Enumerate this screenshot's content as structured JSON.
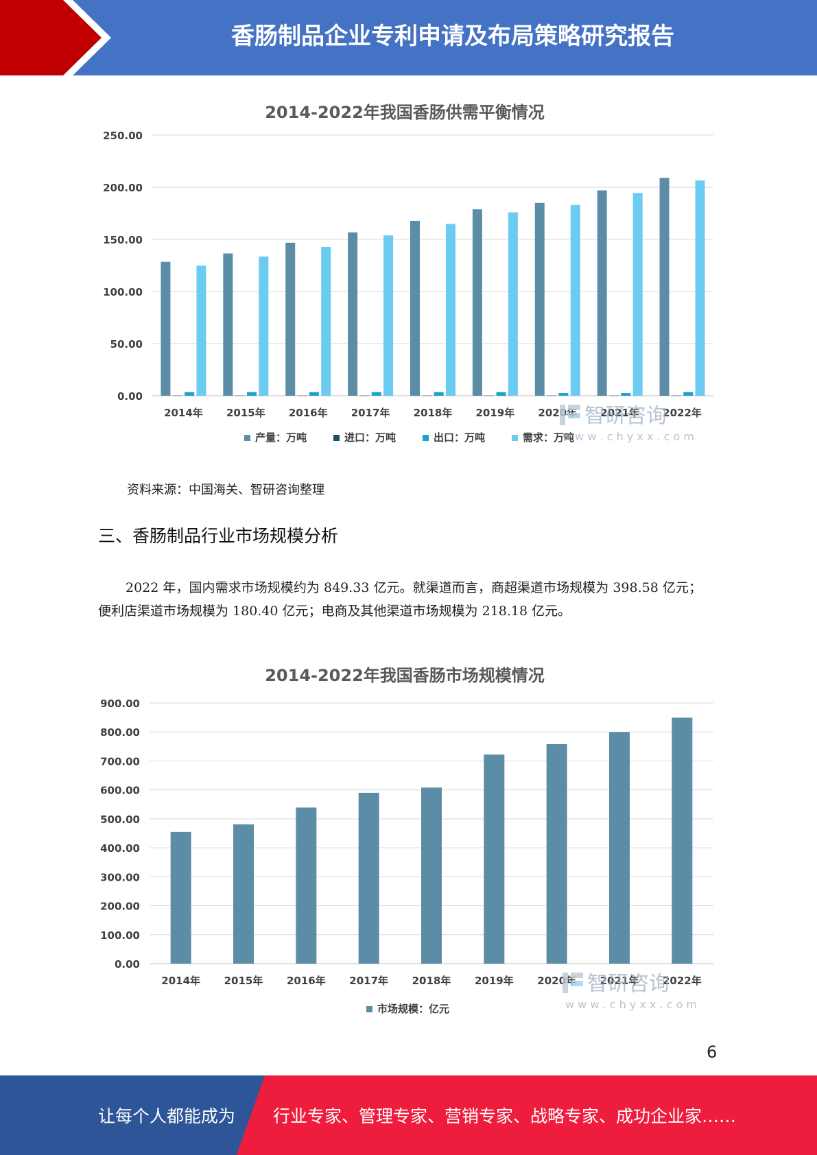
{
  "header": {
    "title": "香肠制品企业专利申请及布局策略研究报告"
  },
  "colors": {
    "header_blue": "#4472c4",
    "header_red": "#c00000",
    "footer_blue": "#2e5597",
    "footer_red": "#ee1d3d",
    "production": "#5b8ea6",
    "import": "#1f4e66",
    "export": "#1fa2c9",
    "demand": "#6ccbf0",
    "market": "#5b8ea6"
  },
  "chart_data": [
    {
      "type": "bar",
      "title": "2014-2022年我国香肠供需平衡情况",
      "categories": [
        "2014年",
        "2015年",
        "2016年",
        "2017年",
        "2018年",
        "2019年",
        "2020年",
        "2021年",
        "2022年"
      ],
      "series": [
        {
          "name": "产量：万吨",
          "values": [
            128.5,
            136.5,
            146.8,
            156.7,
            167.8,
            178.8,
            185.0,
            197.0,
            209.0
          ]
        },
        {
          "name": "进口：万吨",
          "values": [
            0.2,
            0.2,
            0.2,
            0.2,
            0.2,
            0.2,
            0.2,
            0.2,
            0.2
          ]
        },
        {
          "name": "出口：万吨",
          "values": [
            3.5,
            3.5,
            3.5,
            3.5,
            3.5,
            3.5,
            2.6,
            2.6,
            3.5
          ]
        },
        {
          "name": "需求：万吨",
          "values": [
            124.8,
            133.5,
            142.8,
            153.8,
            164.8,
            176.0,
            183.0,
            194.5,
            206.5
          ]
        }
      ],
      "yticks": [
        "0.00",
        "50.00",
        "100.00",
        "150.00",
        "200.00",
        "250.00"
      ],
      "ylim": [
        0,
        250
      ],
      "legend": "bottom",
      "watermark": {
        "brand": "智研咨询",
        "url": "w w w . c h y x x . c o m"
      }
    },
    {
      "type": "bar",
      "title": "2014-2022年我国香肠市场规模情况",
      "categories": [
        "2014年",
        "2015年",
        "2016年",
        "2017年",
        "2018年",
        "2019年",
        "2020年",
        "2021年",
        "2022年"
      ],
      "series": [
        {
          "name": "市场规模：亿元",
          "values": [
            455,
            481,
            539,
            590,
            608,
            722,
            758,
            800,
            849.33
          ]
        }
      ],
      "yticks": [
        "0.00",
        "100.00",
        "200.00",
        "300.00",
        "400.00",
        "500.00",
        "600.00",
        "700.00",
        "800.00",
        "900.00"
      ],
      "ylim": [
        0,
        900
      ],
      "legend": "bottom",
      "watermark": {
        "brand": "智研咨询",
        "url": "w w w . c h y x x . c o m"
      }
    }
  ],
  "source": "资料来源：中国海关、智研咨询整理",
  "section_heading": "三、香肠制品行业市场规模分析",
  "paragraph": "2022 年，国内需求市场规模约为 849.33 亿元。就渠道而言，商超渠道市场规模为 398.58 亿元；便利店渠道市场规模为 180.40 亿元；电商及其他渠道市场规模为 218.18 亿元。",
  "page_number": "6",
  "footer": {
    "left": "让每个人都能成为",
    "right": "行业专家、管理专家、营销专家、战略专家、成功企业家……"
  }
}
